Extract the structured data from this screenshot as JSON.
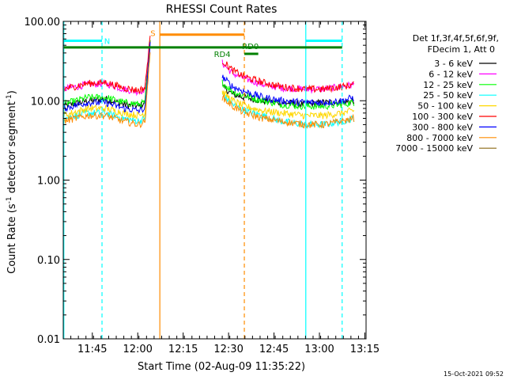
{
  "chart_data": {
    "type": "line",
    "title": "RHESSI Count Rates",
    "xlabel": "Start Time (02-Aug-09 11:35:22)",
    "ylabel_prefix": "Count Rate (s",
    "ylabel_sup": "-1",
    "ylabel_mid": " detector segment",
    "ylabel_sup2": "-1",
    "ylabel_suffix": ")",
    "x_unit": "minutes after 11:35:22",
    "xlim": [
      0,
      100
    ],
    "yscale": "log",
    "ylim": [
      0.01,
      100
    ],
    "xticks": [
      {
        "x": 9.6,
        "label": "11:45"
      },
      {
        "x": 24.6,
        "label": "12:00"
      },
      {
        "x": 39.6,
        "label": "12:15"
      },
      {
        "x": 54.6,
        "label": "12:30"
      },
      {
        "x": 69.6,
        "label": "12:45"
      },
      {
        "x": 84.6,
        "label": "13:00"
      },
      {
        "x": 99.6,
        "label": "13:15"
      }
    ],
    "yticks": [
      {
        "y": 100,
        "label": "100.00"
      },
      {
        "y": 10,
        "label": "10.00"
      },
      {
        "y": 1,
        "label": "1.00"
      },
      {
        "y": 0.1,
        "label": "0.10"
      },
      {
        "y": 0.01,
        "label": "0.01"
      }
    ],
    "legend_placement": "top-right",
    "legend_header": [
      "Det 1f,3f,4f,5f,6f,9f,",
      "FDecim 1, Att 0"
    ],
    "series": [
      {
        "name": "3 - 6 keV",
        "color": "#000000",
        "points": [
          [
            0,
            8.5
          ],
          [
            8,
            10
          ],
          [
            14,
            10.5
          ],
          [
            20,
            9
          ],
          [
            25,
            8.5
          ],
          [
            27,
            9.5
          ],
          [
            28,
            30
          ],
          [
            28.7,
            60
          ],
          [
            52,
            null
          ],
          [
            52.5,
            15
          ],
          [
            56,
            12
          ],
          [
            60,
            11
          ],
          [
            66,
            10
          ],
          [
            72,
            9.5
          ],
          [
            80,
            9
          ],
          [
            86,
            9.5
          ],
          [
            92,
            9.5
          ],
          [
            96,
            10
          ]
        ]
      },
      {
        "name": "6 - 12 keV",
        "color": "#ff00ff",
        "points": [
          [
            0,
            14
          ],
          [
            8,
            16
          ],
          [
            14,
            16.5
          ],
          [
            20,
            14
          ],
          [
            25,
            13
          ],
          [
            27,
            14
          ],
          [
            28,
            35
          ],
          [
            28.7,
            60
          ],
          [
            52,
            null
          ],
          [
            52.5,
            30
          ],
          [
            56,
            22
          ],
          [
            60,
            19
          ],
          [
            66,
            16
          ],
          [
            72,
            14.5
          ],
          [
            80,
            14
          ],
          [
            86,
            14
          ],
          [
            92,
            15
          ],
          [
            96,
            16
          ]
        ]
      },
      {
        "name": "12 - 25 keV",
        "color": "#00ff00",
        "points": [
          [
            0,
            9
          ],
          [
            8,
            11
          ],
          [
            14,
            11
          ],
          [
            20,
            9.5
          ],
          [
            25,
            9
          ],
          [
            27,
            9.5
          ],
          [
            28,
            25
          ],
          [
            28.7,
            55
          ],
          [
            52,
            null
          ],
          [
            52.5,
            17
          ],
          [
            56,
            13
          ],
          [
            60,
            11.5
          ],
          [
            66,
            10
          ],
          [
            72,
            9
          ],
          [
            80,
            8.5
          ],
          [
            86,
            8.5
          ],
          [
            92,
            9
          ],
          [
            96,
            9.5
          ]
        ]
      },
      {
        "name": "25 - 50 keV",
        "color": "#00ffff",
        "points": [
          [
            0,
            6
          ],
          [
            8,
            7
          ],
          [
            14,
            7
          ],
          [
            20,
            6
          ],
          [
            25,
            5.5
          ],
          [
            27,
            6
          ],
          [
            28,
            20
          ],
          [
            28.7,
            50
          ],
          [
            52,
            null
          ],
          [
            52.5,
            12
          ],
          [
            56,
            9
          ],
          [
            60,
            7.5
          ],
          [
            66,
            6.5
          ],
          [
            72,
            5.5
          ],
          [
            80,
            5
          ],
          [
            86,
            5
          ],
          [
            92,
            5.5
          ],
          [
            96,
            6
          ]
        ]
      },
      {
        "name": "50 - 100 keV",
        "color": "#ffd700",
        "points": [
          [
            0,
            6.5
          ],
          [
            8,
            8
          ],
          [
            14,
            8
          ],
          [
            20,
            7
          ],
          [
            25,
            6.5
          ],
          [
            27,
            7
          ],
          [
            28,
            20
          ],
          [
            28.7,
            50
          ],
          [
            52,
            null
          ],
          [
            52.5,
            13
          ],
          [
            56,
            10
          ],
          [
            60,
            8.5
          ],
          [
            66,
            7.5
          ],
          [
            72,
            7
          ],
          [
            80,
            6.5
          ],
          [
            86,
            6.5
          ],
          [
            92,
            7
          ],
          [
            96,
            7.5
          ]
        ]
      },
      {
        "name": "100 - 300 keV",
        "color": "#ff0000",
        "points": [
          [
            0,
            14
          ],
          [
            8,
            16.5
          ],
          [
            14,
            17
          ],
          [
            20,
            14.5
          ],
          [
            25,
            13.5
          ],
          [
            27,
            14.5
          ],
          [
            28,
            35
          ],
          [
            28.7,
            60
          ],
          [
            52,
            null
          ],
          [
            52.5,
            32
          ],
          [
            56,
            24
          ],
          [
            60,
            20
          ],
          [
            66,
            17
          ],
          [
            72,
            15
          ],
          [
            80,
            14
          ],
          [
            86,
            14
          ],
          [
            92,
            15
          ],
          [
            96,
            16
          ]
        ]
      },
      {
        "name": "300 - 800 keV",
        "color": "#0000ff",
        "points": [
          [
            0,
            8
          ],
          [
            8,
            9.5
          ],
          [
            14,
            9.5
          ],
          [
            20,
            8
          ],
          [
            25,
            7.5
          ],
          [
            27,
            8
          ],
          [
            28,
            22
          ],
          [
            28.7,
            55
          ],
          [
            52,
            null
          ],
          [
            52.5,
            20
          ],
          [
            56,
            15
          ],
          [
            60,
            13
          ],
          [
            66,
            11
          ],
          [
            72,
            10
          ],
          [
            80,
            9.5
          ],
          [
            86,
            9.5
          ],
          [
            92,
            10
          ],
          [
            96,
            11
          ]
        ]
      },
      {
        "name": "800 - 7000 keV",
        "color": "#ff8c00",
        "points": [
          [
            0,
            5.5
          ],
          [
            8,
            6.5
          ],
          [
            14,
            6.5
          ],
          [
            20,
            5.5
          ],
          [
            25,
            5
          ],
          [
            27,
            5.5
          ],
          [
            28,
            18
          ],
          [
            28.7,
            45
          ],
          [
            52,
            null
          ],
          [
            52.5,
            11
          ],
          [
            56,
            8.5
          ],
          [
            60,
            7
          ],
          [
            66,
            6
          ],
          [
            72,
            5.5
          ],
          [
            80,
            5
          ],
          [
            86,
            5
          ],
          [
            92,
            5.5
          ],
          [
            96,
            6
          ]
        ]
      },
      {
        "name": "7000 - 15000 keV",
        "color": "#8b6914",
        "points": []
      }
    ],
    "annotations": {
      "vlines": [
        {
          "x": 0.2,
          "color": "#00ffff",
          "dashed": false
        },
        {
          "x": 12.8,
          "color": "#00ffff",
          "dashed": true
        },
        {
          "x": 31.9,
          "color": "#ff8c00",
          "dashed": false
        },
        {
          "x": 59.8,
          "color": "#ff8c00",
          "dashed": true
        },
        {
          "x": 80.1,
          "color": "#00ffff",
          "dashed": false
        },
        {
          "x": 92.1,
          "color": "#00ffff",
          "dashed": true
        }
      ],
      "hbars": [
        {
          "x0": 0.2,
          "x1": 12.8,
          "y": 57,
          "color": "#00ffff",
          "width": 3
        },
        {
          "x0": 80.1,
          "x1": 92.1,
          "y": 57,
          "color": "#00ffff",
          "width": 3
        },
        {
          "x0": 31.9,
          "x1": 59.8,
          "y": 68,
          "color": "#ff8c00",
          "width": 3
        },
        {
          "x0": 0.2,
          "x1": 92.1,
          "y": 47,
          "color": "#008000",
          "width": 3
        },
        {
          "x0": 59.8,
          "x1": 64.4,
          "y": 39,
          "color": "#008000",
          "width": 3
        }
      ],
      "labels": [
        {
          "text": "N",
          "x": 14.5,
          "y": 57,
          "color": "#00ffff"
        },
        {
          "text": "S",
          "x": 29.6,
          "y": 72,
          "color": "#ff8c00"
        },
        {
          "text": "RD4",
          "x": 52.5,
          "y": 39,
          "color": "#008000"
        },
        {
          "text": "RD0",
          "x": 61.8,
          "y": 49,
          "color": "#008000"
        }
      ]
    },
    "footer_stamp": "15-Oct-2021 09:52"
  }
}
